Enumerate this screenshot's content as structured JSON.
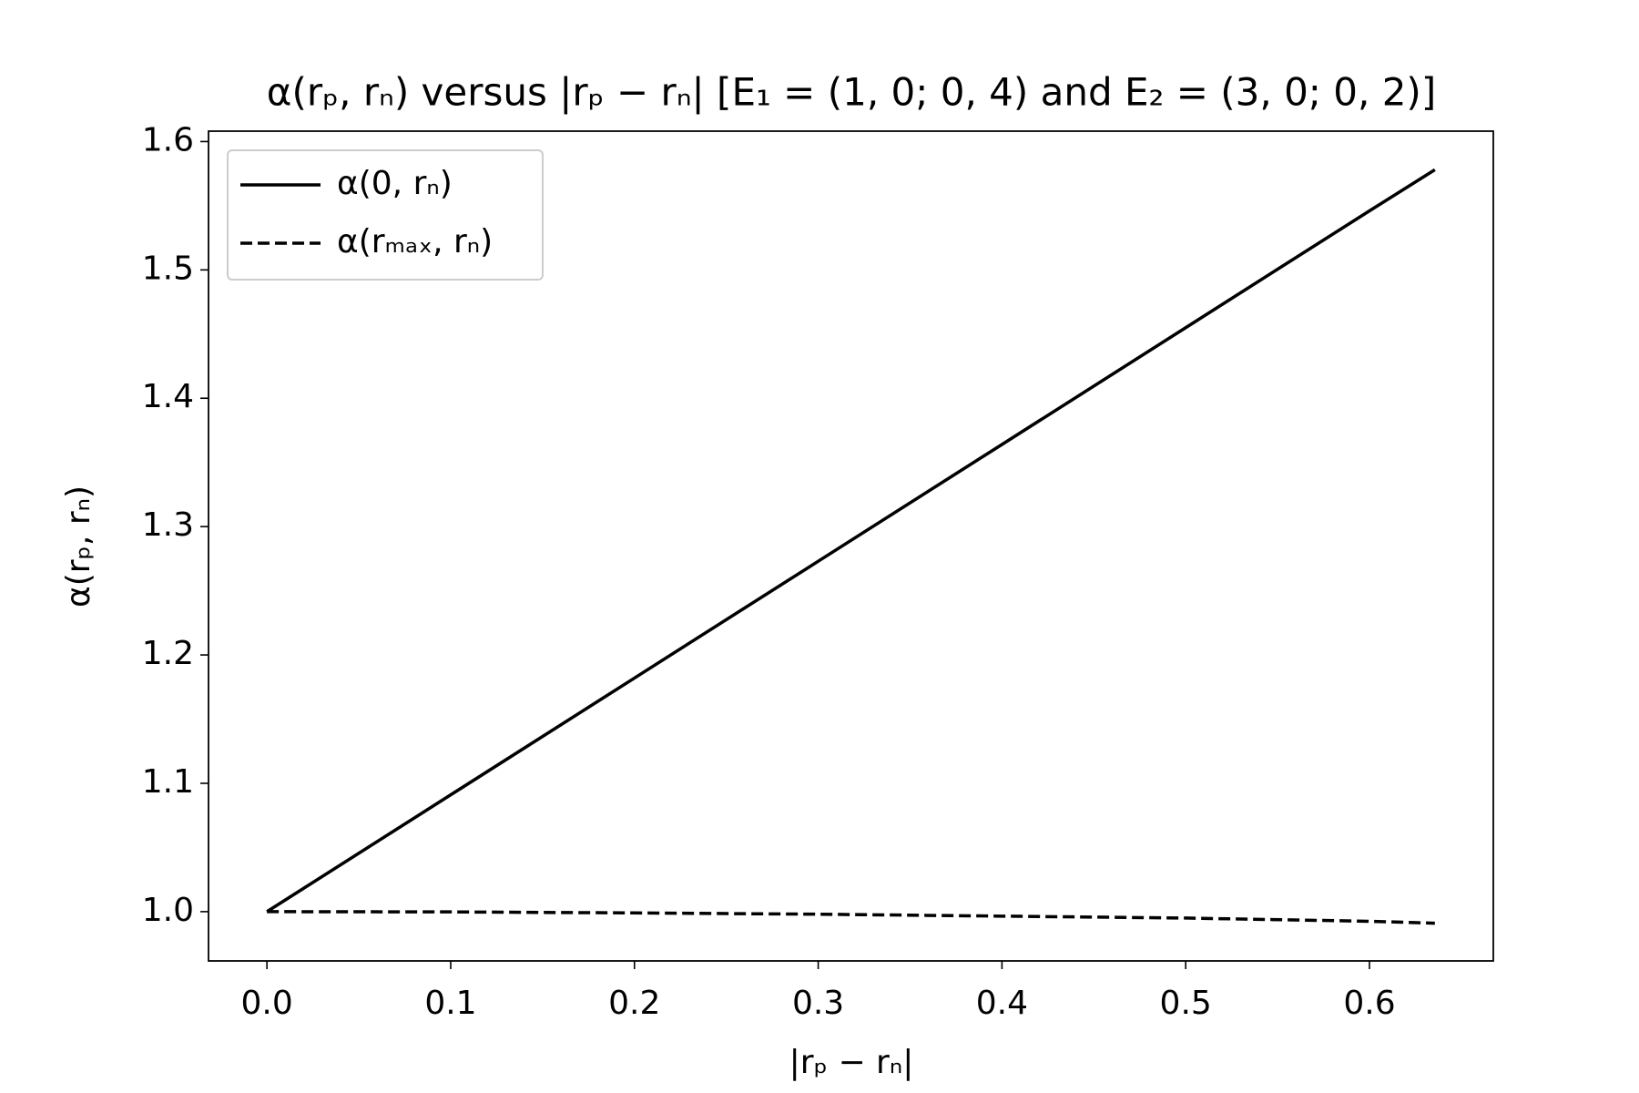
{
  "chart_data": {
    "type": "line",
    "title": "α(rₚ, rₙ) versus  |rₚ − rₙ| [E₁ = (1, 0; 0, 4) and E₂ = (3, 0; 0, 2)]",
    "x_label": "|rₚ − rₙ|",
    "y_label": "α(rₚ, rₙ)",
    "x": [
      0,
      0.1,
      0.2,
      0.3,
      0.4,
      0.5,
      0.6,
      0.6356
    ],
    "series": [
      {
        "name": "α(0, rₙ)",
        "color": "#000000",
        "dash": "solid",
        "values": [
          1.0,
          1.091,
          1.182,
          1.273,
          1.364,
          1.455,
          1.546,
          1.578
        ]
      },
      {
        "name": "α(rₘₐₓ, rₙ)",
        "color": "#000000",
        "dash": "dashed",
        "values": [
          1.0,
          0.9998,
          0.999,
          0.998,
          0.9965,
          0.995,
          0.9925,
          0.991
        ]
      }
    ],
    "xlim": [
      -0.0318,
      0.6674
    ],
    "ylim": [
      0.9616,
      1.6081
    ],
    "xticks": [
      {
        "value": 0,
        "label": "0.0"
      },
      0.1,
      0.2,
      0.3,
      0.4,
      0.5,
      0.6
    ],
    "yticks": [
      {
        "value": 1,
        "label": "1.0"
      },
      1.1,
      1.2,
      1.3,
      1.4,
      1.5,
      1.6
    ],
    "grid": false,
    "legend": "upper left"
  }
}
